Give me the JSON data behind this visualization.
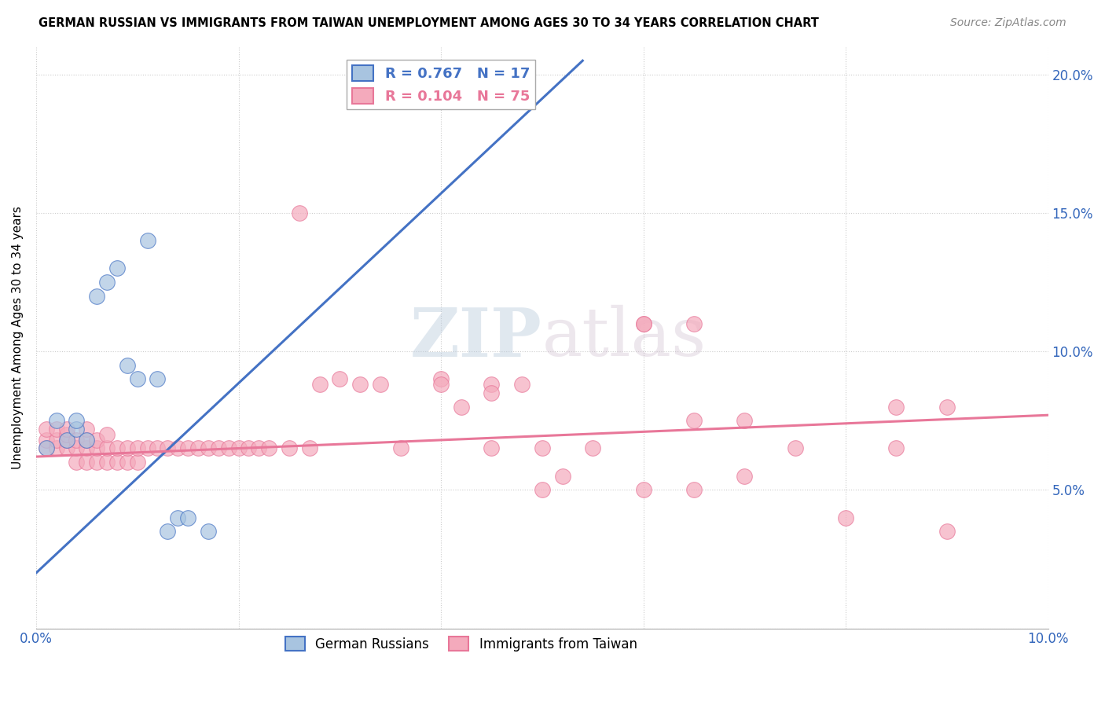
{
  "title": "GERMAN RUSSIAN VS IMMIGRANTS FROM TAIWAN UNEMPLOYMENT AMONG AGES 30 TO 34 YEARS CORRELATION CHART",
  "source": "Source: ZipAtlas.com",
  "ylabel": "Unemployment Among Ages 30 to 34 years",
  "xlim": [
    0.0,
    0.1
  ],
  "ylim": [
    0.0,
    0.21
  ],
  "ytick_positions": [
    0.0,
    0.05,
    0.1,
    0.15,
    0.2
  ],
  "ytick_labels": [
    "",
    "5.0%",
    "10.0%",
    "15.0%",
    "20.0%"
  ],
  "xtick_positions": [
    0.0,
    0.02,
    0.04,
    0.06,
    0.08,
    0.1
  ],
  "xtick_labels": [
    "0.0%",
    "",
    "",
    "",
    "",
    "10.0%"
  ],
  "blue_R": 0.767,
  "blue_N": 17,
  "pink_R": 0.104,
  "pink_N": 75,
  "blue_color": "#4472C4",
  "pink_color": "#E87799",
  "blue_scatter_color": "#A8C4E0",
  "pink_scatter_color": "#F4AABC",
  "watermark": "ZIPatlas",
  "legend_label_blue": "German Russians",
  "legend_label_pink": "Immigrants from Taiwan",
  "blue_points_x": [
    0.001,
    0.002,
    0.003,
    0.004,
    0.004,
    0.005,
    0.006,
    0.007,
    0.008,
    0.009,
    0.01,
    0.011,
    0.012,
    0.013,
    0.014,
    0.015,
    0.017
  ],
  "blue_points_y": [
    0.065,
    0.075,
    0.068,
    0.072,
    0.075,
    0.068,
    0.12,
    0.125,
    0.13,
    0.095,
    0.09,
    0.14,
    0.09,
    0.035,
    0.04,
    0.04,
    0.035
  ],
  "pink_points_x": [
    0.001,
    0.001,
    0.001,
    0.002,
    0.002,
    0.002,
    0.003,
    0.003,
    0.003,
    0.003,
    0.004,
    0.004,
    0.004,
    0.005,
    0.005,
    0.005,
    0.005,
    0.006,
    0.006,
    0.006,
    0.007,
    0.007,
    0.007,
    0.008,
    0.008,
    0.009,
    0.009,
    0.01,
    0.01,
    0.011,
    0.012,
    0.013,
    0.014,
    0.015,
    0.016,
    0.017,
    0.018,
    0.019,
    0.02,
    0.021,
    0.022,
    0.023,
    0.025,
    0.026,
    0.027,
    0.028,
    0.03,
    0.032,
    0.034,
    0.036,
    0.04,
    0.04,
    0.042,
    0.045,
    0.045,
    0.048,
    0.05,
    0.05,
    0.052,
    0.055,
    0.06,
    0.06,
    0.065,
    0.065,
    0.07,
    0.07,
    0.075,
    0.08,
    0.085,
    0.085,
    0.09,
    0.09,
    0.045,
    0.06,
    0.065
  ],
  "pink_points_y": [
    0.065,
    0.068,
    0.072,
    0.065,
    0.068,
    0.072,
    0.065,
    0.068,
    0.07,
    0.072,
    0.06,
    0.065,
    0.068,
    0.06,
    0.065,
    0.068,
    0.072,
    0.06,
    0.065,
    0.068,
    0.06,
    0.065,
    0.07,
    0.06,
    0.065,
    0.06,
    0.065,
    0.06,
    0.065,
    0.065,
    0.065,
    0.065,
    0.065,
    0.065,
    0.065,
    0.065,
    0.065,
    0.065,
    0.065,
    0.065,
    0.065,
    0.065,
    0.065,
    0.15,
    0.065,
    0.088,
    0.09,
    0.088,
    0.088,
    0.065,
    0.09,
    0.088,
    0.08,
    0.088,
    0.065,
    0.088,
    0.05,
    0.065,
    0.055,
    0.065,
    0.05,
    0.11,
    0.05,
    0.11,
    0.055,
    0.075,
    0.065,
    0.04,
    0.065,
    0.08,
    0.035,
    0.08,
    0.085,
    0.11,
    0.075
  ],
  "blue_line_x": [
    0.0,
    0.054
  ],
  "blue_line_y": [
    0.02,
    0.205
  ],
  "pink_line_x": [
    0.0,
    0.1
  ],
  "pink_line_y": [
    0.062,
    0.077
  ]
}
